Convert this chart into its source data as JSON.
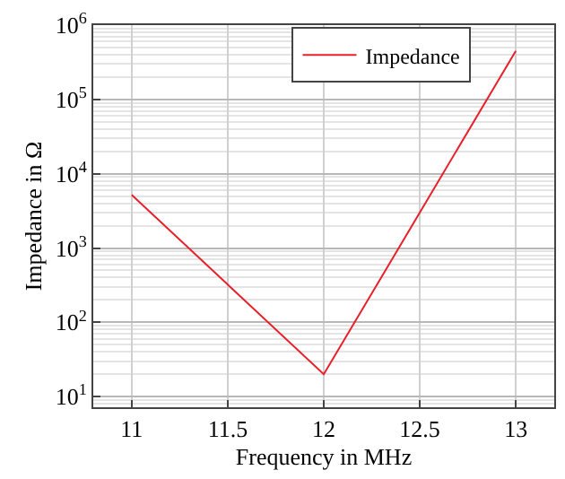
{
  "chart_data": {
    "type": "line",
    "xlabel": "Frequency in MHz",
    "ylabel": "Impedance in Ω",
    "x": [
      11,
      12,
      13
    ],
    "series": [
      {
        "name": "Impedance",
        "color": "#e8202a",
        "values": [
          5200,
          20,
          450000
        ]
      }
    ],
    "log": "y",
    "xlim": [
      10.8,
      13.2
    ],
    "xticks": [
      11,
      11.5,
      12,
      12.5,
      13
    ],
    "ylim": [
      7.2,
      1000000
    ],
    "yticks": [
      {
        "value": 10,
        "label": "10$^{1}$"
      },
      {
        "value": 100,
        "label": "10$^{2}$"
      },
      {
        "value": 1000,
        "label": "10$^{3}$"
      },
      {
        "value": 10000,
        "label": "10$^{4}$"
      },
      {
        "value": 100000,
        "label": "10$^{5}$"
      },
      {
        "value": 1000000,
        "label": "10$^{6}$"
      }
    ],
    "grid": true,
    "legend": "top right",
    "marker": "none",
    "line_style": "solid"
  }
}
